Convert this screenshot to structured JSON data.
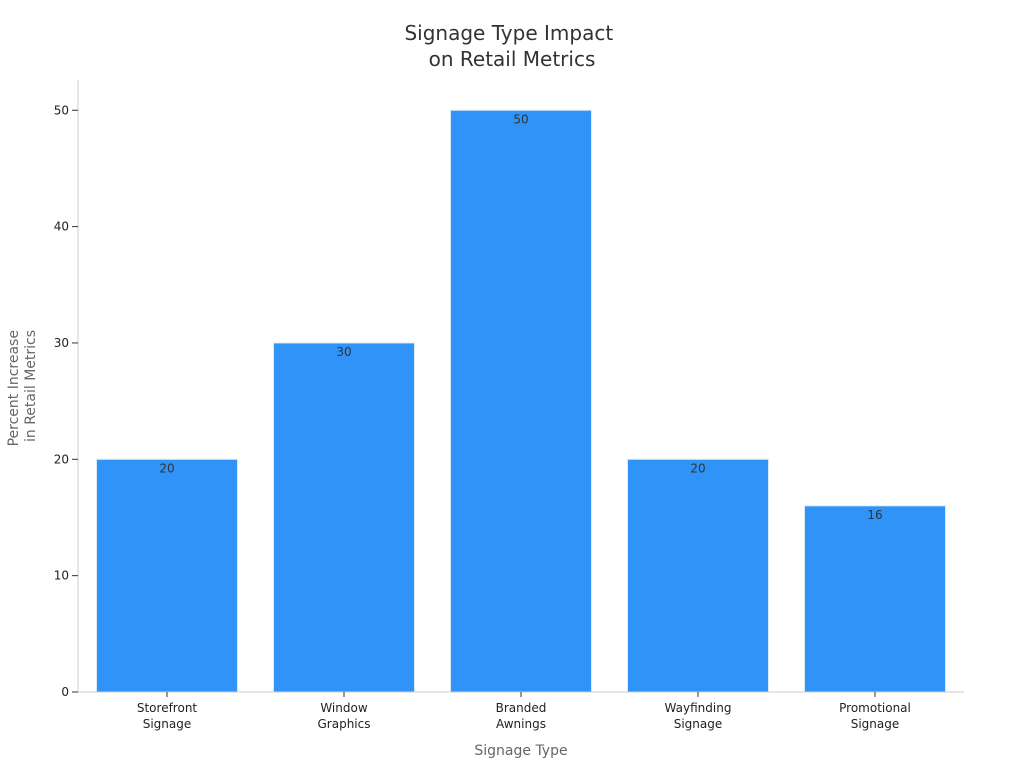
{
  "chart_data": {
    "type": "bar",
    "title": [
      "Signage Type Impact",
      "on Retail Metrics"
    ],
    "xlabel": "Signage Type",
    "ylabel": [
      "Percent Increase",
      "in Retail Metrics"
    ],
    "categories": [
      [
        "Storefront",
        "Signage"
      ],
      [
        "Window",
        "Graphics"
      ],
      [
        "Branded",
        "Awnings"
      ],
      [
        "Wayfinding",
        "Signage"
      ],
      [
        "Promotional",
        "Signage"
      ]
    ],
    "values": [
      20,
      30,
      50,
      20,
      16
    ],
    "data_labels": [
      "20",
      "30",
      "50",
      "20",
      "16"
    ],
    "ylim": [
      0,
      52.6
    ],
    "yticks": [
      0,
      10,
      20,
      30,
      40,
      50
    ],
    "grid": false,
    "colors": {
      "bar": "#3093f8",
      "bar_edge": "#dbe9f7"
    }
  }
}
